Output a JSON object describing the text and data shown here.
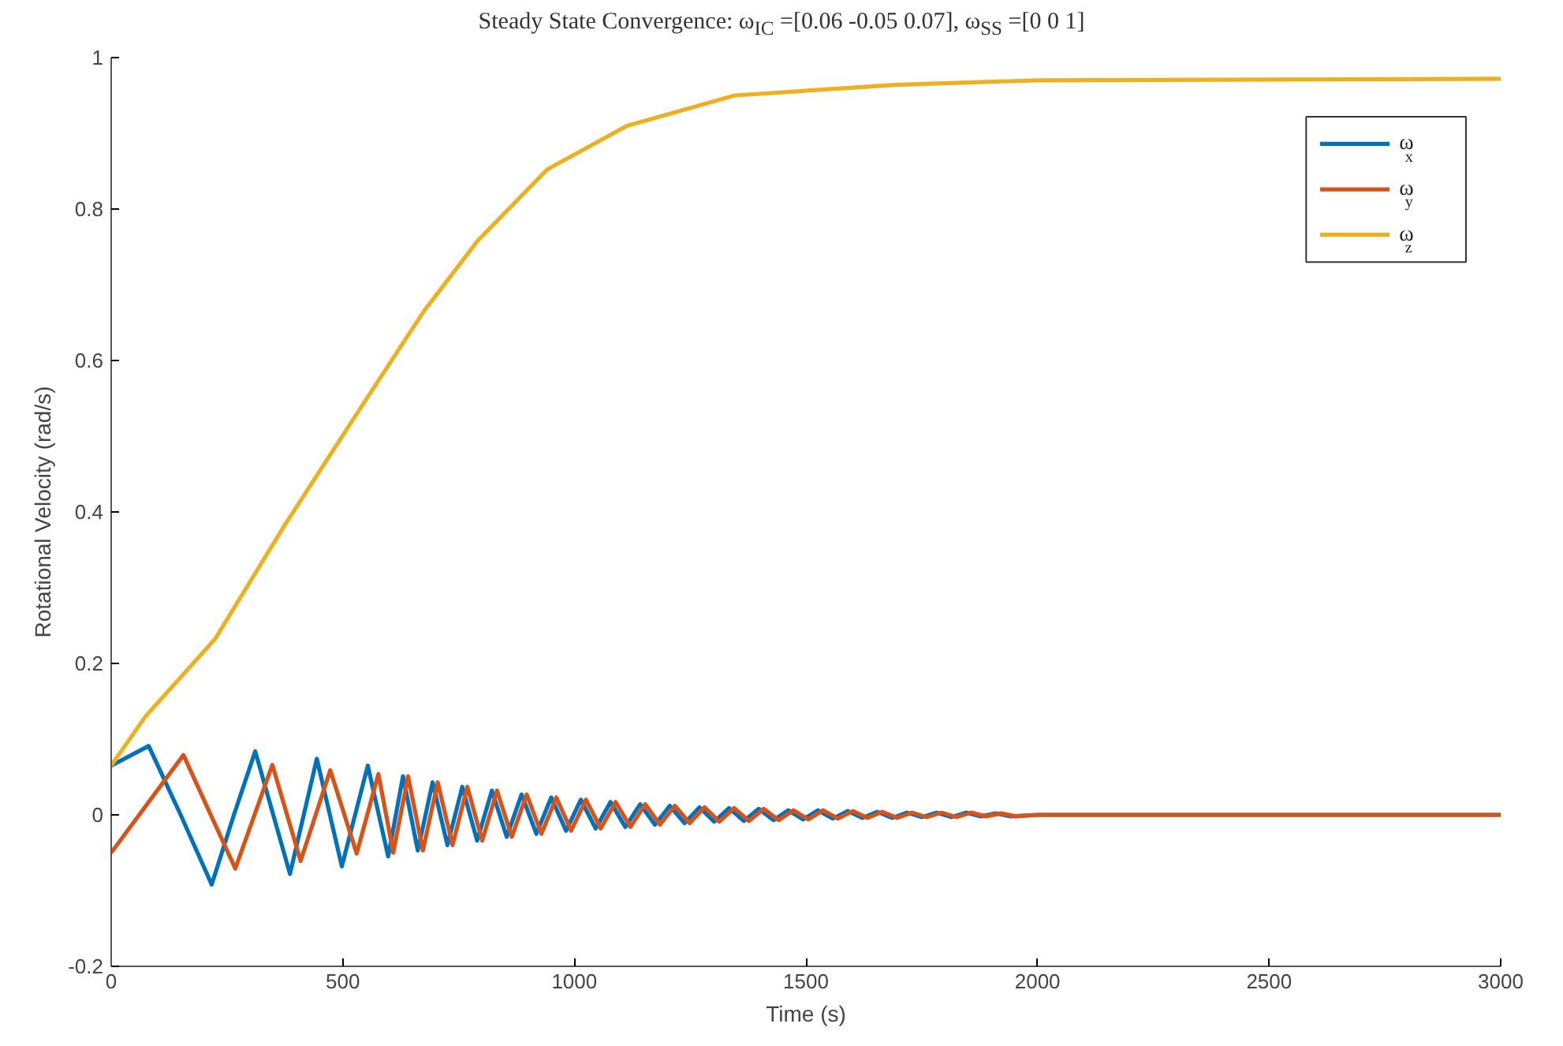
{
  "chart_data": {
    "type": "line",
    "title": "Steady State Convergence: ω$_{IC}$ =[0.06 -0.05 0.07], ω$_{SS}$ =[0 0 1]",
    "xlabel": "Time (s)",
    "ylabel": "Rotational Velocity (rad/s)",
    "xlim": [
      0,
      3000
    ],
    "ylim": [
      -0.2,
      1
    ],
    "xticks": [
      0,
      500,
      1000,
      1500,
      2000,
      2500,
      3000
    ],
    "yticks": [
      -0.2,
      0,
      0.2,
      0.4,
      0.6,
      0.8,
      1
    ],
    "grid": false,
    "legend": "top right",
    "marker": "none",
    "line_style": "solid",
    "series": [
      {
        "name": "ω$_{x}$",
        "color": "#0072bd",
        "x": [
          0,
          81,
          150,
          217,
          265,
          311,
          386,
          444,
          498,
          554,
          598,
          630,
          662,
          694,
          726,
          758,
          790,
          822,
          854,
          886,
          918,
          950,
          982,
          1014,
          1046,
          1078,
          1110,
          1142,
          1174,
          1206,
          1238,
          1270,
          1302,
          1334,
          1366,
          1398,
          1430,
          1462,
          1494,
          1526,
          1558,
          1590,
          1622,
          1654,
          1686,
          1718,
          1750,
          1782,
          1814,
          1846,
          1878,
          1910,
          1942,
          2000,
          3000
        ],
        "values": [
          0.065,
          0.091,
          0.0,
          -0.092,
          0.0,
          0.084,
          -0.078,
          0.074,
          -0.068,
          0.065,
          -0.055,
          0.051,
          -0.047,
          0.043,
          -0.04,
          0.037,
          -0.034,
          0.032,
          -0.029,
          0.027,
          -0.025,
          0.023,
          -0.021,
          0.02,
          -0.018,
          0.017,
          -0.016,
          0.014,
          -0.013,
          0.012,
          -0.011,
          0.01,
          -0.009,
          0.009,
          -0.008,
          0.008,
          -0.007,
          0.006,
          -0.006,
          0.006,
          -0.005,
          0.005,
          -0.004,
          0.004,
          -0.004,
          0.003,
          -0.003,
          0.003,
          -0.003,
          0.003,
          -0.002,
          0.002,
          -0.002,
          0,
          0
        ]
      },
      {
        "name": "ω$_{y}$",
        "color": "#d95319",
        "x": [
          0,
          156,
          268,
          348,
          409,
          473,
          530,
          577,
          609,
          641,
          673,
          705,
          737,
          769,
          801,
          833,
          865,
          897,
          929,
          961,
          993,
          1025,
          1057,
          1089,
          1121,
          1153,
          1185,
          1217,
          1249,
          1281,
          1313,
          1345,
          1377,
          1409,
          1441,
          1473,
          1505,
          1537,
          1569,
          1601,
          1633,
          1665,
          1697,
          1729,
          1761,
          1793,
          1825,
          1857,
          1889,
          1921,
          1953,
          2000,
          3000
        ],
        "values": [
          -0.05,
          0.079,
          -0.071,
          0.066,
          -0.061,
          0.059,
          -0.051,
          0.054,
          -0.05,
          0.051,
          -0.047,
          0.043,
          -0.04,
          0.037,
          -0.034,
          0.032,
          -0.029,
          0.027,
          -0.025,
          0.023,
          -0.021,
          0.02,
          -0.018,
          0.017,
          -0.016,
          0.014,
          -0.013,
          0.012,
          -0.011,
          0.01,
          -0.009,
          0.009,
          -0.008,
          0.008,
          -0.007,
          0.006,
          -0.006,
          0.006,
          -0.005,
          0.005,
          -0.004,
          0.004,
          -0.004,
          0.003,
          -0.003,
          0.003,
          -0.003,
          0.003,
          -0.002,
          0.002,
          -0.002,
          0,
          0
        ]
      },
      {
        "name": "ω$_{z}$",
        "color": "#edb120",
        "x": [
          0,
          74,
          224,
          375,
          536,
          675,
          791,
          941,
          1114,
          1346,
          1692,
          2000,
          3000
        ],
        "values": [
          0.065,
          0.13,
          0.232,
          0.383,
          0.535,
          0.665,
          0.758,
          0.852,
          0.91,
          0.95,
          0.964,
          0.97,
          0.972
        ]
      }
    ]
  }
}
